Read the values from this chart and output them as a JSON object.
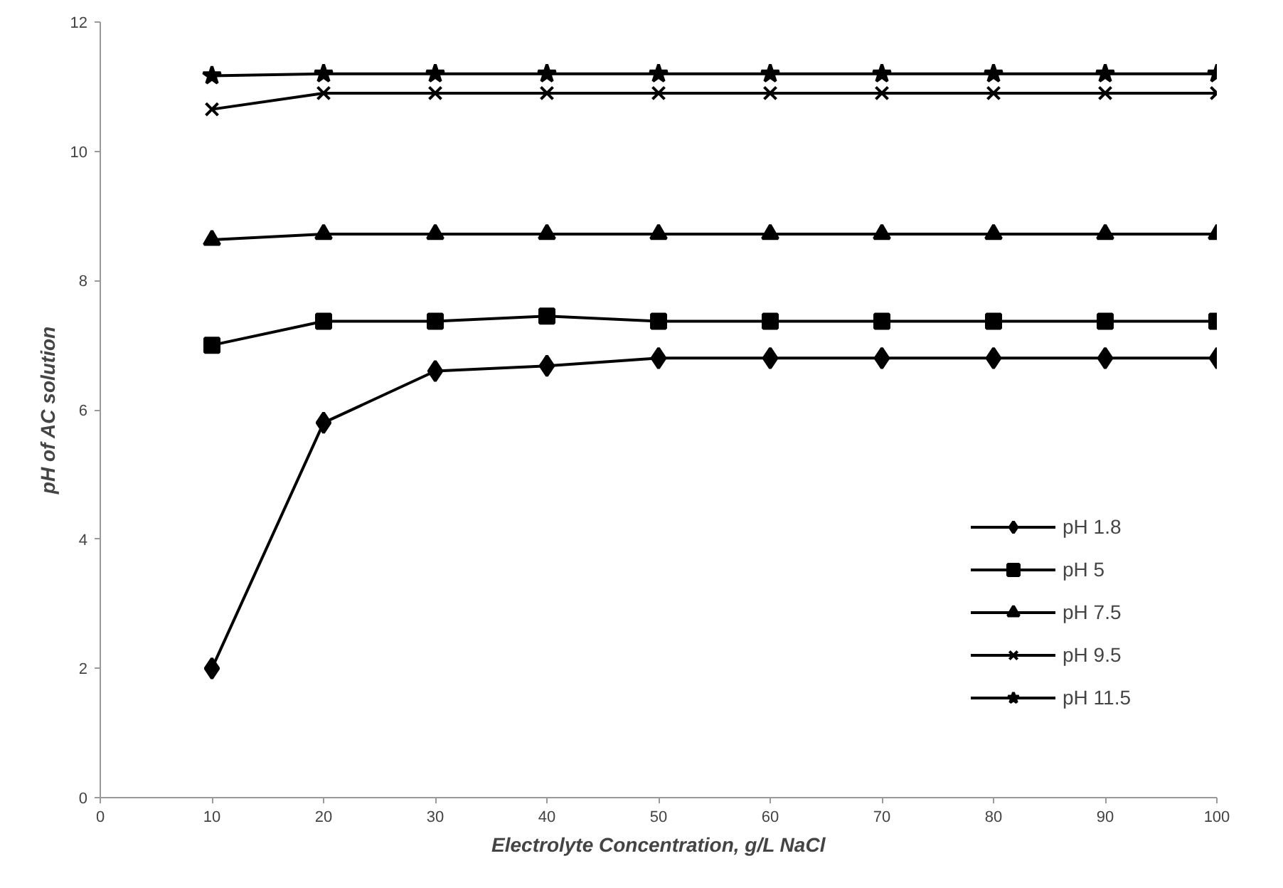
{
  "chart_data": {
    "type": "line",
    "xlabel": "Electrolyte Concentration, g/L NaCl",
    "ylabel": "pH of AC solution",
    "x": [
      10,
      20,
      30,
      40,
      50,
      60,
      70,
      80,
      90,
      100
    ],
    "xlim": [
      0,
      100
    ],
    "xticks": [
      0,
      10,
      20,
      30,
      40,
      50,
      60,
      70,
      80,
      90,
      100
    ],
    "ylim": [
      0,
      12
    ],
    "yticks": [
      0,
      2,
      4,
      6,
      8,
      10,
      12
    ],
    "grid": false,
    "legend": "bottom right",
    "line_style": "solid",
    "series": [
      {
        "name": "pH 1.8",
        "color": "#000000",
        "marker": "diamond",
        "values": [
          2.0,
          5.8,
          6.6,
          6.68,
          6.8,
          6.8,
          6.8,
          6.8,
          6.8,
          6.8
        ]
      },
      {
        "name": "pH 5",
        "color": "#000000",
        "marker": "square",
        "values": [
          7.0,
          7.37,
          7.37,
          7.45,
          7.37,
          7.37,
          7.37,
          7.37,
          7.37,
          7.37
        ]
      },
      {
        "name": "pH 7.5",
        "color": "#000000",
        "marker": "triangle",
        "values": [
          8.63,
          8.72,
          8.72,
          8.72,
          8.72,
          8.72,
          8.72,
          8.72,
          8.72,
          8.72
        ]
      },
      {
        "name": "pH 9.5",
        "color": "#000000",
        "marker": "cross",
        "values": [
          10.65,
          10.9,
          10.9,
          10.9,
          10.9,
          10.9,
          10.9,
          10.9,
          10.9,
          10.9
        ]
      },
      {
        "name": "pH 11.5",
        "color": "#000000",
        "marker": "star",
        "values": [
          11.17,
          11.2,
          11.2,
          11.2,
          11.2,
          11.2,
          11.2,
          11.2,
          11.2,
          11.2
        ]
      }
    ]
  }
}
